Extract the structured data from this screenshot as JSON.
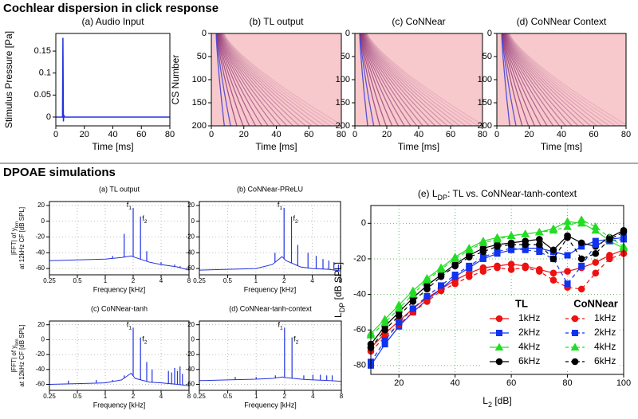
{
  "headings": [
    "Cochlear dispersion in click response",
    "DPOAE simulations"
  ],
  "chart_data": [
    {
      "type": "line",
      "title": "(a) Audio Input",
      "xlabel": "Time [ms]",
      "ylabel": "Stimulus Pressure [Pa]",
      "x": [
        0,
        4.7,
        5,
        5.3,
        5.6,
        6,
        80
      ],
      "values": [
        0,
        0,
        0.18,
        -0.01,
        0.005,
        0,
        0
      ],
      "color": "#2233dd",
      "xlim": [
        0,
        80
      ],
      "xticks": [
        0,
        20,
        40,
        60,
        80
      ],
      "ylim": [
        -0.02,
        0.19
      ],
      "yticks": [
        0,
        0.05,
        0.1,
        0.15
      ]
    },
    {
      "type": "heatmap",
      "title": "(b) TL output",
      "xlabel": "Time [ms]",
      "ylabel": "CS Number",
      "color": "#f8c9cc",
      "xlim": [
        0,
        80
      ],
      "xticks": [
        0,
        20,
        40,
        60,
        80
      ],
      "ylim": [
        200,
        0
      ],
      "yticks": [
        0,
        50,
        100,
        150,
        200
      ]
    },
    {
      "type": "heatmap",
      "title": "(c) CoNNear",
      "xlabel": "Time [ms]",
      "color": "#f8c9cc",
      "xlim": [
        0,
        80
      ],
      "xticks": [
        0,
        20,
        40,
        60,
        80
      ],
      "ylim": [
        200,
        0
      ],
      "yticks": [
        0,
        50,
        100,
        150,
        200
      ]
    },
    {
      "type": "heatmap",
      "title": "(d) CoNNear Context",
      "xlabel": "Time [ms]",
      "color": "#f8c9cc",
      "xlim": [
        0,
        80
      ],
      "xticks": [
        0,
        20,
        40,
        60,
        80
      ],
      "ylim": [
        200,
        0
      ],
      "yticks": [
        0,
        50,
        100,
        150,
        200
      ]
    },
    {
      "type": "spectrum",
      "title": "(a) TL output",
      "xlabel": "Frequency [kHz]",
      "ylabel": [
        {
          "pre": "|FFT| of y",
          "sub": "bm"
        },
        "at 12kHz CF [dB SPL]"
      ],
      "annotations": [
        {
          "pre": "f",
          "sub": "1"
        },
        {
          "pre": "f",
          "sub": "2"
        }
      ],
      "color": "#2233dd",
      "log_x": true,
      "grid": true,
      "x": [
        0.25,
        0.5,
        1,
        1.5,
        1.9,
        2.1,
        3,
        4,
        6,
        8
      ],
      "values": [
        -50,
        -49,
        -48,
        -46,
        -44,
        -46,
        -52,
        -55,
        -58,
        -62
      ],
      "peaks_x": [
        1.2,
        1.6,
        2,
        2.4,
        2.8,
        3.2,
        4,
        5.6,
        6.4
      ],
      "peaks": [
        -44,
        -16,
        17,
        6,
        -38,
        -52,
        -52,
        -55,
        -57
      ],
      "xlim": [
        0.25,
        8
      ],
      "xticks": [
        0.25,
        0.5,
        1,
        2,
        4,
        8
      ],
      "ylim": [
        -68,
        25
      ],
      "yticks": [
        20,
        0,
        -20,
        -40,
        -60
      ]
    },
    {
      "type": "spectrum",
      "title": "(b) CoNNear-PReLU",
      "xlabel": "Frequency [kHz]",
      "annotations": [
        {
          "pre": "f",
          "sub": "1"
        },
        {
          "pre": "f",
          "sub": "2"
        }
      ],
      "color": "#2233dd",
      "log_x": true,
      "grid": true,
      "x": [
        0.25,
        0.5,
        1,
        1.5,
        1.9,
        2.1,
        3,
        4,
        6,
        8
      ],
      "values": [
        -62,
        -61,
        -60,
        -55,
        -45,
        -50,
        -58,
        -60,
        -61,
        -63
      ],
      "peaks_x": [
        1.6,
        2,
        2.4,
        2.8,
        3.6,
        4.4,
        5.2,
        6,
        6.8,
        7.6
      ],
      "peaks": [
        -40,
        17,
        6,
        -30,
        -40,
        -44,
        -48,
        -50,
        -52,
        -55
      ],
      "xlim": [
        0.25,
        8
      ],
      "xticks": [
        0.25,
        0.5,
        1,
        2,
        4,
        8
      ],
      "ylim": [
        -68,
        25
      ],
      "yticks": [
        20,
        0,
        -20,
        -40,
        -60
      ]
    },
    {
      "type": "spectrum",
      "title": "(c) CoNNear-tanh",
      "xlabel": "Frequency [kHz]",
      "ylabel": [
        {
          "pre": "|FFT| of y",
          "sub": "bm"
        },
        "at 12kHz CF [dB SPL]"
      ],
      "annotations": [
        {
          "pre": "f",
          "sub": "1"
        },
        {
          "pre": "f",
          "sub": "2"
        }
      ],
      "color": "#2233dd",
      "log_x": true,
      "grid": true,
      "x": [
        0.25,
        0.5,
        1,
        1.5,
        1.9,
        2.1,
        3,
        4,
        6,
        8
      ],
      "values": [
        -60,
        -59,
        -58,
        -54,
        -45,
        -52,
        -57,
        -58,
        -60,
        -62
      ],
      "peaks_x": [
        0.4,
        0.8,
        1.2,
        1.6,
        2,
        2.4,
        2.8,
        3.2,
        4.8,
        5.2,
        5.6,
        6,
        6.4,
        6.8
      ],
      "peaks": [
        -55,
        -54,
        -54,
        -48,
        16,
        3,
        -30,
        -40,
        -42,
        -44,
        -38,
        -42,
        -36,
        -46
      ],
      "xlim": [
        0.25,
        8
      ],
      "xticks": [
        0.25,
        0.5,
        1,
        2,
        4,
        8
      ],
      "ylim": [
        -68,
        25
      ],
      "yticks": [
        20,
        0,
        -20,
        -40,
        -60
      ]
    },
    {
      "type": "spectrum",
      "title": "(d) CoNNear-tanh-context",
      "xlabel": "Frequency [kHz]",
      "annotations": [
        {
          "pre": "f",
          "sub": "1"
        },
        {
          "pre": "f",
          "sub": "2"
        }
      ],
      "color": "#2233dd",
      "log_x": true,
      "grid": true,
      "x": [
        0.25,
        0.5,
        1,
        1.5,
        1.9,
        2.1,
        3,
        4,
        6,
        8
      ],
      "values": [
        -55,
        -54,
        -53,
        -52,
        -50,
        -51,
        -53,
        -54,
        -55,
        -56
      ],
      "peaks_x": [
        0.6,
        1,
        1.6,
        2,
        2.4,
        3.2,
        4,
        4.8,
        5.6,
        6.4
      ],
      "peaks": [
        -50,
        -50,
        -48,
        16,
        3,
        -48,
        -47,
        -47,
        -48,
        -48
      ],
      "xlim": [
        0.25,
        8
      ],
      "xticks": [
        0.25,
        0.5,
        1,
        2,
        4,
        8
      ],
      "ylim": [
        -68,
        25
      ],
      "yticks": [
        20,
        0,
        -20,
        -40,
        -60
      ]
    },
    {
      "type": "ldp",
      "title": {
        "pre": "(e) L",
        "sub": "DP",
        "post": ": TL vs. CoNNear-tanh-context"
      },
      "xlabel": {
        "pre": "L",
        "sub": "2",
        "post": " [dB]"
      },
      "ylabel": {
        "pre": "L",
        "sub": "DP",
        "post": " [dB SPL]"
      },
      "grid": true,
      "legend": {
        "position": "lower right",
        "titles": [
          "TL",
          "CoNNear"
        ]
      },
      "x": [
        10,
        15,
        20,
        25,
        30,
        35,
        40,
        45,
        50,
        55,
        60,
        65,
        70,
        75,
        80,
        85,
        90,
        95,
        100
      ],
      "series": [
        {
          "name": "1kHz",
          "color": "#ee1111",
          "marker": "circle",
          "dashed": false,
          "values": [
            -70,
            -62,
            -55,
            -48,
            -42,
            -37,
            -32,
            -28,
            -25,
            -24,
            -23,
            -24,
            -26,
            -28,
            -27,
            -25,
            -22,
            -18,
            -15
          ]
        },
        {
          "name": "2kHz",
          "color": "#1133ee",
          "marker": "square",
          "dashed": false,
          "values": [
            -80,
            -68,
            -58,
            -50,
            -43,
            -37,
            -30,
            -25,
            -20,
            -17,
            -15,
            -14,
            -14,
            -16,
            -18,
            -13,
            -10,
            -9,
            -8
          ]
        },
        {
          "name": "4kHz",
          "color": "#22dd22",
          "marker": "triangle",
          "dashed": false,
          "values": [
            -62,
            -54,
            -46,
            -38,
            -31,
            -25,
            -19,
            -14,
            -10,
            -8,
            -7,
            -6,
            -5,
            -3,
            1,
            0,
            -4,
            -10,
            -14
          ]
        },
        {
          "name": "6kHz",
          "color": "#000000",
          "marker": "circle",
          "dashed": false,
          "values": [
            -68,
            -58,
            -50,
            -42,
            -35,
            -29,
            -23,
            -18,
            -14,
            -12,
            -11,
            -10,
            -9,
            -15,
            -7,
            -11,
            -13,
            -8,
            -4
          ]
        },
        {
          "name": "1kHz",
          "color": "#ee1111",
          "marker": "circle",
          "dashed": true,
          "values": [
            -72,
            -64,
            -57,
            -50,
            -44,
            -38,
            -34,
            -30,
            -27,
            -25,
            -26,
            -25,
            -27,
            -32,
            -36,
            -37,
            -28,
            -20,
            -17
          ]
        },
        {
          "name": "2kHz",
          "color": "#1133ee",
          "marker": "square",
          "dashed": true,
          "values": [
            -78,
            -66,
            -56,
            -48,
            -41,
            -35,
            -29,
            -24,
            -19,
            -16,
            -14,
            -15,
            -16,
            -20,
            -34,
            -24,
            -12,
            -10,
            -9
          ]
        },
        {
          "name": "4kHz",
          "color": "#22dd22",
          "marker": "triangle",
          "dashed": true,
          "values": [
            -63,
            -56,
            -48,
            -40,
            -32,
            -26,
            -20,
            -15,
            -11,
            -9,
            -7,
            -6,
            -5,
            -4,
            -2,
            2,
            -2,
            -8,
            -13
          ]
        },
        {
          "name": "6kHz",
          "color": "#000000",
          "marker": "circle",
          "dashed": true,
          "values": [
            -70,
            -60,
            -52,
            -44,
            -37,
            -30,
            -24,
            -19,
            -16,
            -13,
            -12,
            -12,
            -12,
            -20,
            -8,
            -20,
            -17,
            -9,
            -5
          ]
        }
      ],
      "xlim": [
        10,
        100
      ],
      "xticks": [
        20,
        40,
        60,
        80,
        100
      ],
      "ylim": [
        -85,
        10
      ],
      "yticks": [
        0,
        -20,
        -40,
        -60,
        -80
      ]
    }
  ]
}
